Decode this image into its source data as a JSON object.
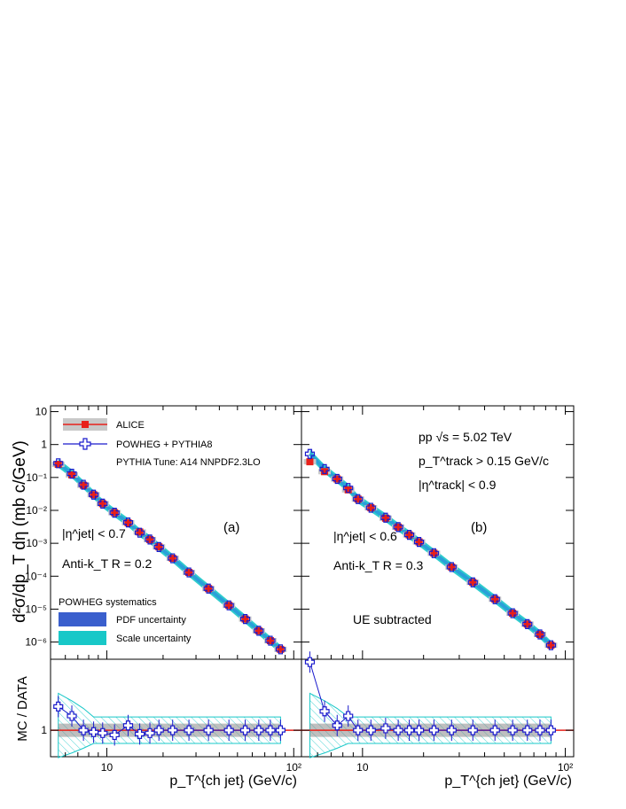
{
  "figure": {
    "ylabel_main": "d²σ/dp_T dη (mb c/GeV)",
    "ylabel_ratio": "MC / DATA",
    "xlabel": "p_T^{ch jet} (GeV/c)",
    "panel_a": {
      "label": "(a)",
      "eta_cut": "|η^jet| < 0.7",
      "algo": "Anti-k_T  R = 0.2"
    },
    "panel_b": {
      "label": "(b)",
      "energy": "pp √s = 5.02 TeV",
      "track_pt": "p_T^track > 0.15 GeV/c",
      "track_eta": "|η^track| < 0.9",
      "eta_cut": "|η^jet| < 0.6",
      "algo": "Anti-k_T  R = 0.3",
      "ue": "UE subtracted"
    },
    "legend": {
      "alice": "ALICE",
      "powheg": "POWHEG + PYTHIA8",
      "tune": "PYTHIA Tune: A14 NNPDF2.3LO",
      "sys_title": "POWHEG systematics",
      "pdf": "PDF uncertainty",
      "scale": "Scale uncertainty"
    },
    "y_ticks": [
      "10",
      "1",
      "10⁻¹",
      "10⁻²",
      "10⁻³",
      "10⁻⁴",
      "10⁻⁵",
      "10⁻⁶"
    ],
    "x_ticks": [
      "10",
      "10²"
    ],
    "ratio_ticks": [
      "1"
    ]
  },
  "colors": {
    "alice": "#e8201a",
    "alice_band": "#c8c8c8",
    "powheg": "#1a1acc",
    "pdf_band": "#3a5fcd",
    "scale_band": "#18c8c8",
    "theory_line": "#2aa0d8"
  },
  "chart_data": [
    {
      "type": "scatter",
      "panel": "a",
      "x": [
        5.5,
        6.5,
        7.5,
        8.5,
        9.5,
        11,
        13,
        15,
        17,
        19,
        22.5,
        27.5,
        35,
        45,
        55,
        65,
        75,
        85
      ],
      "series": [
        {
          "name": "ALICE",
          "values": [
            0.25,
            0.12,
            0.058,
            0.03,
            0.016,
            0.0085,
            0.0042,
            0.0022,
            0.0013,
            0.00078,
            0.00035,
            0.00013,
            4.2e-05,
            1.3e-05,
            5e-06,
            2.2e-06,
            1.1e-06,
            6e-07
          ]
        },
        {
          "name": "POWHEG + PYTHIA8",
          "values": [
            0.27,
            0.13,
            0.06,
            0.03,
            0.016,
            0.0085,
            0.0043,
            0.0021,
            0.0013,
            0.00077,
            0.00035,
            0.00013,
            4.2e-05,
            1.3e-05,
            5e-06,
            2.2e-06,
            1.1e-06,
            6e-07
          ]
        }
      ],
      "ratio": [
        1.25,
        1.15,
        1.0,
        0.98,
        0.97,
        0.95,
        1.05,
        0.96,
        0.97,
        1.0,
        1.0,
        1.0,
        1.0,
        1.0,
        1.0,
        1.0,
        1.0,
        1.0
      ],
      "xlim": [
        5,
        110
      ],
      "ylim": [
        3e-07,
        15
      ],
      "ratio_ylim": [
        0.72,
        1.75
      ],
      "xscale": "log",
      "yscale": "log",
      "xlabel": "p_T^{ch jet} (GeV/c)",
      "ylabel": "d²σ/dp_T dη (mb c/GeV)"
    },
    {
      "type": "scatter",
      "panel": "b",
      "x": [
        5.5,
        6.5,
        7.5,
        8.5,
        9.5,
        11,
        13,
        15,
        17,
        19,
        22.5,
        27.5,
        35,
        45,
        55,
        65,
        75,
        85
      ],
      "series": [
        {
          "name": "ALICE",
          "values": [
            0.3,
            0.15,
            0.09,
            0.042,
            0.022,
            0.012,
            0.0058,
            0.0031,
            0.0018,
            0.0011,
            0.0005,
            0.00019,
            6.5e-05,
            2e-05,
            7.5e-06,
            3.5e-06,
            1.7e-06,
            8e-07
          ]
        },
        {
          "name": "POWHEG + PYTHIA8",
          "values": [
            0.52,
            0.18,
            0.09,
            0.048,
            0.022,
            0.012,
            0.006,
            0.0031,
            0.0018,
            0.0011,
            0.0005,
            0.00019,
            6.5e-05,
            2e-05,
            7.5e-06,
            3.5e-06,
            1.7e-06,
            8e-07
          ]
        }
      ],
      "ratio": [
        1.72,
        1.2,
        1.05,
        1.15,
        1.0,
        1.0,
        1.02,
        1.0,
        1.0,
        1.0,
        1.0,
        1.0,
        1.0,
        1.0,
        1.0,
        1.0,
        1.0,
        1.0
      ],
      "xlim": [
        5,
        110
      ],
      "ylim": [
        3e-07,
        15
      ],
      "ratio_ylim": [
        0.72,
        1.75
      ],
      "xscale": "log",
      "yscale": "log",
      "xlabel": "p_T^{ch jet} (GeV/c)",
      "ylabel": "d²σ/dp_T dη (mb c/GeV)"
    }
  ]
}
